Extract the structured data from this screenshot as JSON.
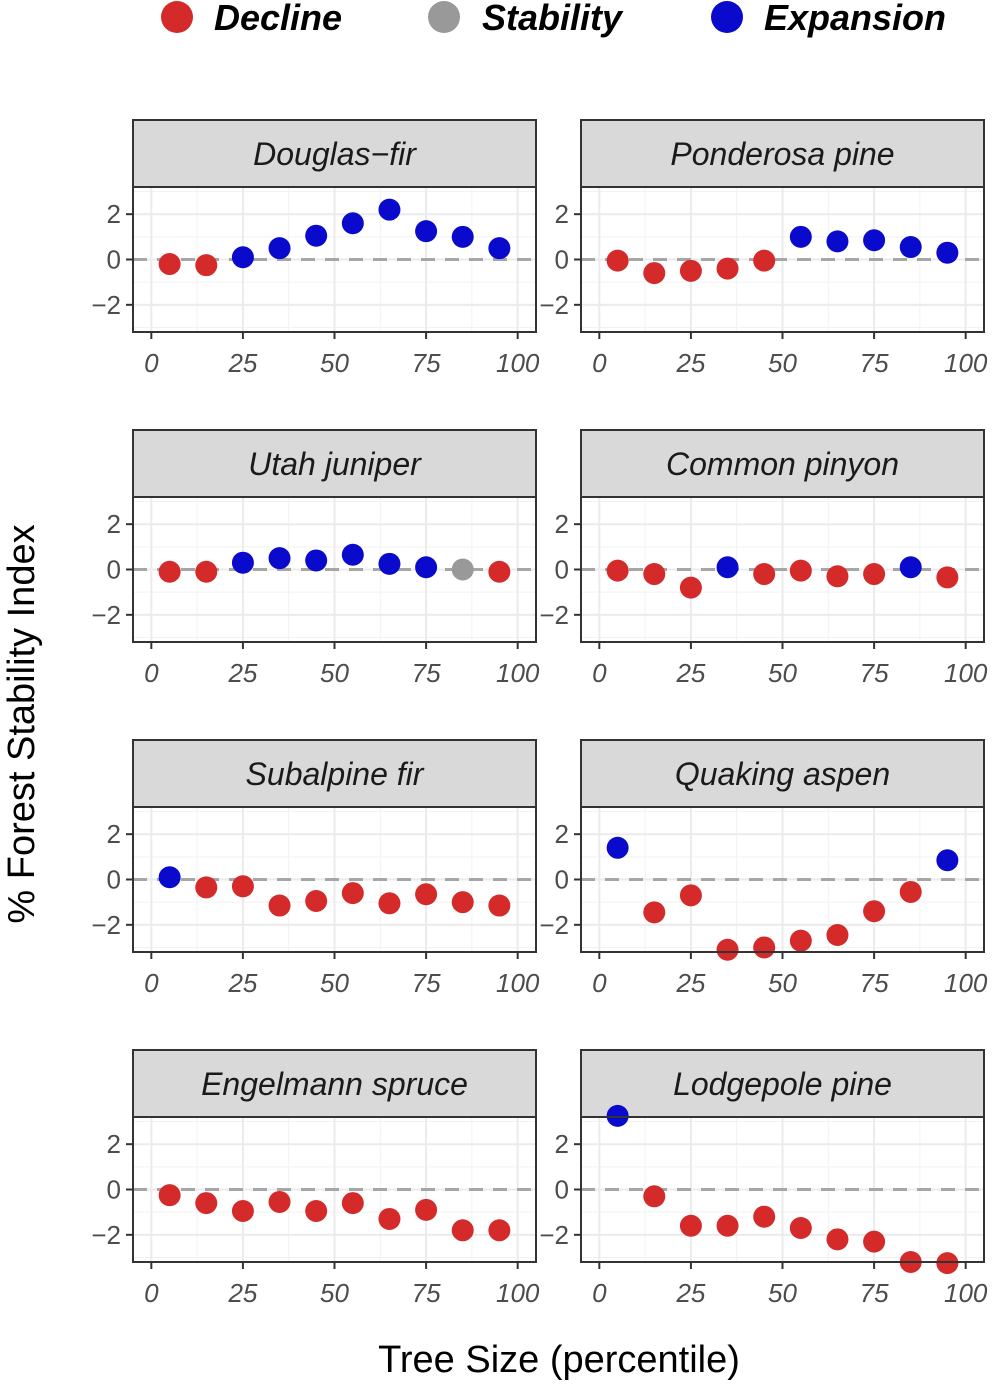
{
  "chart_data": {
    "type": "scatter",
    "faceted": true,
    "xlabel": "Tree Size (percentile)",
    "ylabel": "% Forest Stability Index",
    "xlim": [
      -5,
      105
    ],
    "ylim": [
      -3.2,
      3.2
    ],
    "x_ticks": [
      0,
      25,
      50,
      75,
      100
    ],
    "y_ticks": [
      -2,
      0,
      2
    ],
    "reference_line_y": 0,
    "legend": {
      "position": "top",
      "entries": [
        {
          "key": "decline",
          "label": "Decline",
          "color": "#d42a2a"
        },
        {
          "key": "stability",
          "label": "Stability",
          "color": "#999999"
        },
        {
          "key": "expansion",
          "label": "Expansion",
          "color": "#0a0acd"
        }
      ]
    },
    "x": [
      5,
      15,
      25,
      35,
      45,
      55,
      65,
      75,
      85,
      95
    ],
    "panels": [
      {
        "title": "Douglas−fir",
        "values": [
          -0.2,
          -0.25,
          0.1,
          0.5,
          1.05,
          1.6,
          2.2,
          1.25,
          1.0,
          0.5
        ],
        "status": [
          "decline",
          "decline",
          "expansion",
          "expansion",
          "expansion",
          "expansion",
          "expansion",
          "expansion",
          "expansion",
          "expansion"
        ]
      },
      {
        "title": "Ponderosa pine",
        "values": [
          -0.05,
          -0.6,
          -0.5,
          -0.4,
          -0.05,
          1.0,
          0.8,
          0.85,
          0.55,
          0.3
        ],
        "status": [
          "decline",
          "decline",
          "decline",
          "decline",
          "decline",
          "expansion",
          "expansion",
          "expansion",
          "expansion",
          "expansion"
        ]
      },
      {
        "title": "Utah juniper",
        "values": [
          -0.1,
          -0.1,
          0.3,
          0.5,
          0.4,
          0.65,
          0.25,
          0.1,
          0.0,
          -0.1
        ],
        "status": [
          "decline",
          "decline",
          "expansion",
          "expansion",
          "expansion",
          "expansion",
          "expansion",
          "expansion",
          "stability",
          "decline"
        ]
      },
      {
        "title": "Common pinyon",
        "values": [
          -0.05,
          -0.2,
          -0.8,
          0.1,
          -0.2,
          -0.05,
          -0.3,
          -0.2,
          0.1,
          -0.35
        ],
        "status": [
          "decline",
          "decline",
          "decline",
          "expansion",
          "decline",
          "decline",
          "decline",
          "decline",
          "expansion",
          "decline"
        ]
      },
      {
        "title": "Subalpine fir",
        "values": [
          0.1,
          -0.35,
          -0.3,
          -1.15,
          -0.95,
          -0.6,
          -1.05,
          -0.65,
          -1.0,
          -1.15
        ],
        "status": [
          "expansion",
          "decline",
          "decline",
          "decline",
          "decline",
          "decline",
          "decline",
          "decline",
          "decline",
          "decline"
        ]
      },
      {
        "title": "Quaking aspen",
        "values": [
          1.4,
          -1.45,
          -0.7,
          -3.1,
          -3.0,
          -2.7,
          -2.45,
          -1.4,
          -0.55,
          0.85
        ],
        "status": [
          "expansion",
          "decline",
          "decline",
          "decline",
          "decline",
          "decline",
          "decline",
          "decline",
          "decline",
          "expansion"
        ]
      },
      {
        "title": "Engelmann spruce",
        "values": [
          -0.25,
          -0.6,
          -0.95,
          -0.55,
          -0.95,
          -0.6,
          -1.3,
          -0.9,
          -1.8,
          -1.8
        ],
        "status": [
          "decline",
          "decline",
          "decline",
          "decline",
          "decline",
          "decline",
          "decline",
          "decline",
          "decline",
          "decline"
        ]
      },
      {
        "title": "Lodgepole pine",
        "values": [
          3.25,
          -0.3,
          -1.6,
          -1.6,
          -1.2,
          -1.7,
          -2.2,
          -2.3,
          -3.2,
          -3.25
        ],
        "status": [
          "expansion",
          "decline",
          "decline",
          "decline",
          "decline",
          "decline",
          "decline",
          "decline",
          "decline",
          "decline"
        ]
      }
    ]
  }
}
